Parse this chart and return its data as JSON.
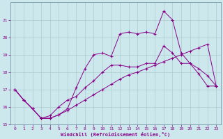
{
  "xlabel": "Windchill (Refroidissement éolien,°C)",
  "bg_color": "#cce8ec",
  "grid_color": "#aacccc",
  "line_color": "#880088",
  "xlim": [
    -0.5,
    23.5
  ],
  "ylim": [
    15,
    22
  ],
  "yticks": [
    15,
    16,
    17,
    18,
    19,
    20,
    21
  ],
  "xticks": [
    0,
    1,
    2,
    3,
    4,
    5,
    6,
    7,
    8,
    9,
    10,
    11,
    12,
    13,
    14,
    15,
    16,
    17,
    18,
    19,
    20,
    21,
    22,
    23
  ],
  "series1_x": [
    0,
    1,
    2,
    3,
    4,
    5,
    6,
    7,
    8,
    9,
    10,
    11,
    12,
    13,
    14,
    15,
    16,
    17,
    18,
    19,
    20,
    21,
    22,
    23
  ],
  "series1_y": [
    17.0,
    16.4,
    15.9,
    15.35,
    15.35,
    15.55,
    15.8,
    16.1,
    16.4,
    16.7,
    17.0,
    17.3,
    17.6,
    17.85,
    18.0,
    18.2,
    18.4,
    18.6,
    18.8,
    19.0,
    19.2,
    19.4,
    19.6,
    17.2
  ],
  "series2_x": [
    0,
    1,
    2,
    3,
    4,
    5,
    6,
    7,
    8,
    9,
    10,
    11,
    12,
    13,
    14,
    15,
    16,
    17,
    18,
    19,
    20,
    21,
    22,
    23
  ],
  "series2_y": [
    17.0,
    16.4,
    15.9,
    15.35,
    15.5,
    16.0,
    16.4,
    16.6,
    17.1,
    17.5,
    18.0,
    18.4,
    18.4,
    18.3,
    18.3,
    18.5,
    18.5,
    19.5,
    19.1,
    18.5,
    18.5,
    18.2,
    17.8,
    17.2
  ],
  "series3_x": [
    0,
    1,
    2,
    3,
    4,
    5,
    6,
    7,
    8,
    9,
    10,
    11,
    12,
    13,
    14,
    15,
    16,
    17,
    18,
    19,
    20,
    21,
    22,
    23
  ],
  "series3_y": [
    17.0,
    16.4,
    15.9,
    15.35,
    15.35,
    15.55,
    15.9,
    17.1,
    18.2,
    19.0,
    19.1,
    18.9,
    20.2,
    20.3,
    20.2,
    20.3,
    20.2,
    21.5,
    21.0,
    19.1,
    18.5,
    17.9,
    17.2,
    17.2
  ]
}
